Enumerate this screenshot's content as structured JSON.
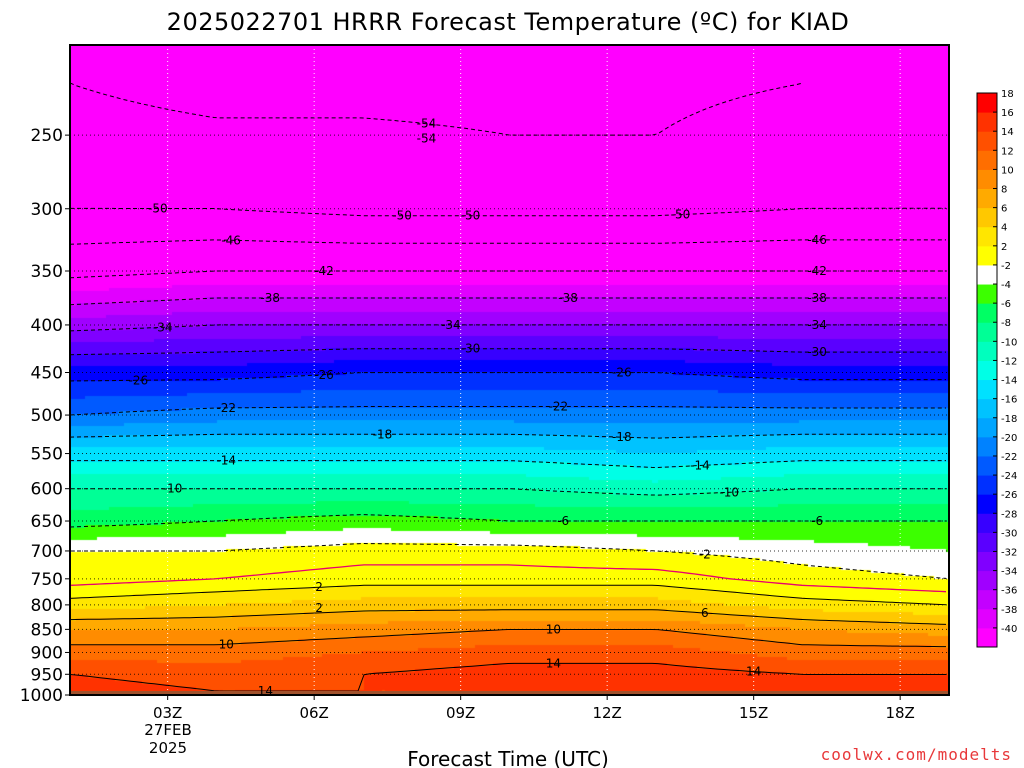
{
  "title": "2025022701 HRRR Forecast Temperature (ºC) for KIAD",
  "credit": "coolwx.com/modelts",
  "chart_data": {
    "type": "heatmap",
    "title": "2025022701 HRRR Forecast Temperature (ºC) for KIAD",
    "xlabel": "Forecast Time (UTC)",
    "ylabel": "",
    "x_axis": {
      "unit": "forecast hour (UTC)",
      "range": [
        1,
        19
      ],
      "ticks": [
        3,
        6,
        9,
        12,
        15,
        18
      ],
      "tick_labels": [
        "03Z",
        "06Z",
        "09Z",
        "12Z",
        "15Z",
        "18Z"
      ],
      "date_label": [
        "27FEB",
        "2025"
      ]
    },
    "y_axis": {
      "unit": "pressure (hPa)",
      "scale": "log",
      "inverted": true,
      "range": [
        1000,
        200
      ],
      "ticks": [
        250,
        300,
        350,
        400,
        450,
        500,
        550,
        600,
        650,
        700,
        750,
        800,
        850,
        900,
        950,
        1000
      ],
      "tick_labels": [
        "250",
        "300",
        "350",
        "400",
        "450",
        "500",
        "550",
        "600",
        "650",
        "700",
        "750",
        "800",
        "850",
        "900",
        "950",
        "1000"
      ]
    },
    "grid": true,
    "surface_pressure_hpa": 990,
    "temperature_profiles": [
      {
        "hour": 1,
        "points": [
          [
            220,
            -54
          ],
          [
            250,
            -52
          ],
          [
            300,
            -50
          ],
          [
            350,
            -43
          ],
          [
            400,
            -35
          ],
          [
            450,
            -27
          ],
          [
            500,
            -22
          ],
          [
            550,
            -15
          ],
          [
            600,
            -10
          ],
          [
            650,
            -7
          ],
          [
            700,
            -2
          ],
          [
            750,
            -1
          ],
          [
            800,
            3
          ],
          [
            850,
            8
          ],
          [
            900,
            11
          ],
          [
            950,
            14
          ],
          [
            990,
            15
          ]
        ]
      },
      {
        "hour": 4,
        "points": [
          [
            220,
            -56
          ],
          [
            250,
            -53
          ],
          [
            300,
            -50
          ],
          [
            350,
            -42
          ],
          [
            400,
            -34
          ],
          [
            450,
            -27
          ],
          [
            500,
            -21
          ],
          [
            550,
            -15
          ],
          [
            600,
            -10
          ],
          [
            650,
            -6
          ],
          [
            700,
            -2
          ],
          [
            750,
            0
          ],
          [
            800,
            4
          ],
          [
            850,
            8
          ],
          [
            900,
            11
          ],
          [
            950,
            13
          ],
          [
            990,
            14
          ]
        ]
      },
      {
        "hour": 7,
        "points": [
          [
            220,
            -56
          ],
          [
            250,
            -53
          ],
          [
            300,
            -51
          ],
          [
            350,
            -42
          ],
          [
            400,
            -34
          ],
          [
            450,
            -26
          ],
          [
            500,
            -21
          ],
          [
            550,
            -15
          ],
          [
            600,
            -10
          ],
          [
            650,
            -5
          ],
          [
            700,
            -1
          ],
          [
            750,
            1
          ],
          [
            800,
            5
          ],
          [
            850,
            9
          ],
          [
            900,
            12
          ],
          [
            950,
            14
          ],
          [
            990,
            14
          ]
        ]
      },
      {
        "hour": 10,
        "points": [
          [
            220,
            -56
          ],
          [
            250,
            -54
          ],
          [
            300,
            -51
          ],
          [
            350,
            -42
          ],
          [
            400,
            -34
          ],
          [
            450,
            -26
          ],
          [
            500,
            -21
          ],
          [
            550,
            -15
          ],
          [
            600,
            -10
          ],
          [
            650,
            -6
          ],
          [
            700,
            -1
          ],
          [
            750,
            1
          ],
          [
            800,
            5
          ],
          [
            850,
            10
          ],
          [
            900,
            13
          ],
          [
            950,
            15
          ],
          [
            990,
            14
          ]
        ]
      },
      {
        "hour": 13,
        "points": [
          [
            220,
            -55
          ],
          [
            250,
            -54
          ],
          [
            300,
            -51
          ],
          [
            350,
            -42
          ],
          [
            400,
            -34
          ],
          [
            450,
            -26
          ],
          [
            500,
            -21
          ],
          [
            550,
            -16
          ],
          [
            600,
            -11
          ],
          [
            650,
            -6
          ],
          [
            700,
            -2
          ],
          [
            750,
            1
          ],
          [
            800,
            5
          ],
          [
            850,
            10
          ],
          [
            900,
            13
          ],
          [
            950,
            15
          ],
          [
            990,
            14
          ]
        ]
      },
      {
        "hour": 16,
        "points": [
          [
            220,
            -54
          ],
          [
            250,
            -52
          ],
          [
            300,
            -50
          ],
          [
            350,
            -42
          ],
          [
            400,
            -34
          ],
          [
            450,
            -27
          ],
          [
            500,
            -21
          ],
          [
            550,
            -15
          ],
          [
            600,
            -10
          ],
          [
            650,
            -6
          ],
          [
            700,
            -3
          ],
          [
            750,
            -1
          ],
          [
            800,
            3
          ],
          [
            850,
            8
          ],
          [
            900,
            11
          ],
          [
            950,
            14
          ],
          [
            990,
            15
          ]
        ]
      },
      {
        "hour": 19,
        "points": [
          [
            220,
            -53
          ],
          [
            250,
            -51
          ],
          [
            300,
            -50
          ],
          [
            350,
            -42
          ],
          [
            400,
            -34
          ],
          [
            450,
            -27
          ],
          [
            500,
            -21
          ],
          [
            550,
            -15
          ],
          [
            600,
            -10
          ],
          [
            650,
            -6
          ],
          [
            700,
            -4
          ],
          [
            750,
            -2
          ],
          [
            800,
            2
          ],
          [
            850,
            7
          ],
          [
            900,
            11
          ],
          [
            950,
            14
          ],
          [
            990,
            15
          ]
        ]
      }
    ],
    "colorbar": {
      "levels": [
        -40,
        -38,
        -36,
        -34,
        -32,
        -30,
        -28,
        -26,
        -24,
        -22,
        -20,
        -18,
        -16,
        -14,
        -12,
        -10,
        -8,
        -6,
        -4,
        -2,
        2,
        4,
        6,
        8,
        10,
        12,
        14,
        16,
        18
      ],
      "tick_labels": [
        "-40",
        "-38",
        "-36",
        "-34",
        "-32",
        "-30",
        "-28",
        "-26",
        "-24",
        "-22",
        "-20",
        "-18",
        "-16",
        "-14",
        "-12",
        "-10",
        "-8",
        "-6",
        "-4",
        "-2",
        "2",
        "4",
        "6",
        "8",
        "10",
        "12",
        "14",
        "16",
        "18"
      ],
      "colors": [
        "#ff00ff",
        "#e100ff",
        "#c300ff",
        "#a000ff",
        "#8000ff",
        "#5a00ff",
        "#3700ff",
        "#0000ff",
        "#0030ff",
        "#005aff",
        "#0082ff",
        "#00a5ff",
        "#00c3ff",
        "#00e1ff",
        "#00ffe6",
        "#00ffbe",
        "#00ff96",
        "#00ff64",
        "#3cff00",
        "#ffffff",
        "#ffff00",
        "#ffe600",
        "#ffc800",
        "#ffaa00",
        "#ff8c00",
        "#ff6e00",
        "#ff5000",
        "#ff3200",
        "#ff0000"
      ]
    },
    "contour_labels": [
      "-50",
      "-54",
      "-54",
      "-50",
      "-50",
      "-50",
      "-46",
      "-46",
      "-42",
      "-42",
      "-38",
      "-38",
      "-38",
      "-34",
      "-34",
      "-34",
      "-30",
      "-30",
      "-26",
      "-26",
      "-26",
      "-22",
      "-22",
      "-18",
      "-18",
      "-14",
      "-14",
      "-10",
      "-10",
      "-6",
      "-6",
      "-2",
      "2",
      "2",
      "6",
      "10",
      "10",
      "14",
      "14",
      "14"
    ],
    "freezing_line_color": "#e8006e",
    "ground_color": "#a0522d"
  }
}
